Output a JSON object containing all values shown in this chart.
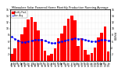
{
  "title": "Milwaukee Solar Powered Home Monthly Production Running Average",
  "ylabel_right": "kWh/d",
  "bar_values": [
    2.1,
    3.8,
    6.5,
    8.2,
    10.5,
    12.8,
    13.5,
    12.2,
    9.5,
    6.8,
    3.2,
    1.8,
    2.3,
    4.0,
    7.0,
    8.5,
    10.8,
    13.2,
    14.0,
    12.5,
    4.5,
    7.0,
    3.5,
    2.0,
    2.5,
    4.2,
    7.2,
    8.8,
    10.6,
    3.0
  ],
  "running_avg": [
    7.5,
    6.8,
    6.2,
    5.8,
    5.8,
    6.0,
    6.2,
    6.5,
    6.5,
    6.5,
    6.2,
    5.8,
    5.5,
    5.5,
    5.8,
    6.0,
    6.2,
    6.5,
    6.8,
    7.0,
    6.8,
    6.8,
    6.5,
    6.2,
    6.0,
    6.0,
    6.2,
    6.5,
    6.5,
    6.2
  ],
  "month_labels": [
    "Jan\n'08",
    "Feb\n'08",
    "Mar\n'08",
    "Apr\n'08",
    "May\n'08",
    "Jun\n'08",
    "Jul\n'08",
    "Aug\n'08",
    "Sep\n'08",
    "Oct\n'08",
    "Nov\n'08",
    "Dec\n'08",
    "Jan\n'09",
    "Feb\n'09",
    "Mar\n'09",
    "Apr\n'09",
    "May\n'09",
    "Jun\n'09",
    "Jul\n'09",
    "Aug\n'09",
    "Sep\n'09",
    "Oct\n'09",
    "Nov\n'09",
    "Dec\n'09",
    "Jan\n'10",
    "Feb\n'10",
    "Mar\n'10",
    "Apr\n'10",
    "May\n'10",
    "Jun\n'10"
  ],
  "bar_color": "#FF0000",
  "line_color": "#0000FF",
  "bg_color": "#FFFFFF",
  "grid_color": "#C8C8C8",
  "ylim": [
    0,
    16
  ],
  "yticks": [
    2,
    4,
    6,
    8,
    10,
    12,
    14,
    16
  ]
}
